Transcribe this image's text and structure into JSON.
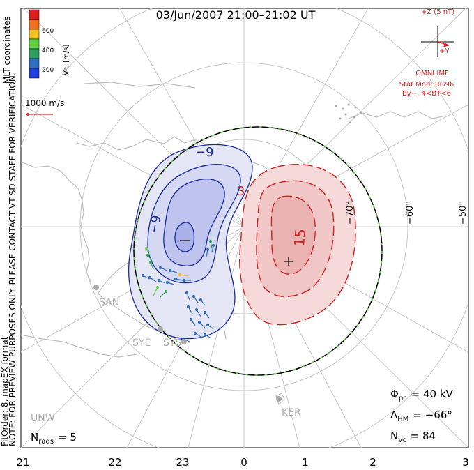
{
  "title": "03/Jun/2007 21:00–21:02 UT",
  "side_note_line1": "NOTE: FOR PREVIEW PURPOSES ONLY. PLEASE CONTACT VT-SD STAFF FOR VERIFICATION.",
  "side_note_line2": "FitOrder: 8, mapEX format",
  "colorbar": {
    "title": "MLT coordinates",
    "unit_label": "Vel [m/s]",
    "ticks": [
      "600",
      "400",
      "200"
    ],
    "colors": [
      "#e02020",
      "#f07020",
      "#f0c020",
      "#60d040",
      "#30a060",
      "#3070c0",
      "#2040e0"
    ]
  },
  "scale_vector": {
    "label": "1000 m/s",
    "color": "#e03030"
  },
  "imf": {
    "z_label": "+Z (5 nT)",
    "y_label": "+Y",
    "source": "OMNI IMF",
    "model_line1": "Stat Mod: RG96",
    "model_line2": "By−, 4<BT<6",
    "color": "#e02020"
  },
  "lat_labels": [
    "−70°",
    "−60°",
    "−50°"
  ],
  "mlt_labels": [
    "21",
    "22",
    "23",
    "0",
    "1",
    "2",
    "3"
  ],
  "radars": [
    "SAN",
    "SYE",
    "SYS",
    "UNW",
    "KER"
  ],
  "contour_labels": {
    "neg1": "−9",
    "neg2": "−9",
    "pos1": "3",
    "pos2": "15"
  },
  "stats": {
    "phi_label": "Φ",
    "phi_sub": "pc",
    "phi_value": "= 40 kV",
    "lambda_label": "Λ",
    "lambda_sub": "HM",
    "lambda_value": "= −66°",
    "nvc_label": "N",
    "nvc_sub": "vc",
    "nvc_value": "= 84",
    "nrads_label": "N",
    "nrads_sub": "rads",
    "nrads_value": "= 5"
  }
}
